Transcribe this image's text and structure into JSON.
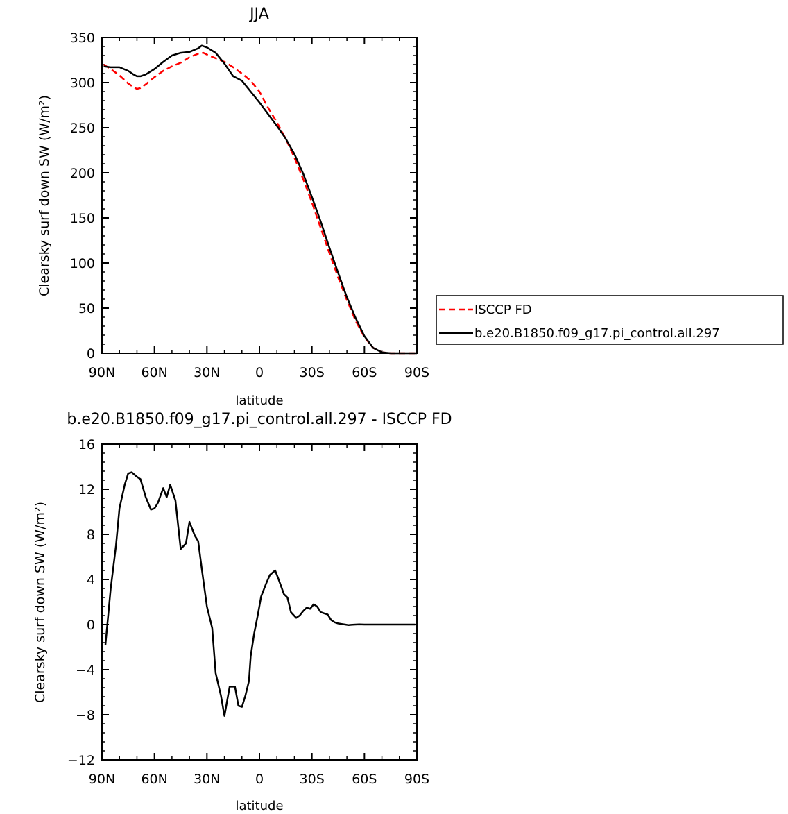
{
  "chart_data": [
    {
      "type": "line",
      "title": "JJA",
      "xlabel": "latitude",
      "ylabel": "Clearsky surf down SW (W/m²)",
      "xlim": [
        90,
        -90
      ],
      "ylim": [
        0,
        350
      ],
      "xticks": [
        {
          "value": 90,
          "label": "90N"
        },
        {
          "value": 60,
          "label": "60N"
        },
        {
          "value": 30,
          "label": "30N"
        },
        {
          "value": 0,
          "label": "0"
        },
        {
          "value": -30,
          "label": "30S"
        },
        {
          "value": -60,
          "label": "60S"
        },
        {
          "value": -90,
          "label": "90S"
        }
      ],
      "yticks": [
        0,
        50,
        100,
        150,
        200,
        250,
        300,
        350
      ],
      "legend_position": "right",
      "series": [
        {
          "name": "ISCCP FD",
          "color": "#ff0000",
          "dash": "dashed",
          "x": [
            89,
            85,
            80,
            75,
            72,
            70,
            68,
            65,
            60,
            55,
            50,
            45,
            40,
            35,
            32,
            30,
            25,
            20,
            15,
            10,
            5,
            0,
            -5,
            -10,
            -15,
            -20,
            -25,
            -30,
            -35,
            -40,
            -45,
            -50,
            -55,
            -60,
            -65,
            -70,
            -75,
            -80,
            -85,
            -90
          ],
          "y": [
            320,
            315,
            308,
            299,
            295,
            293,
            294,
            298,
            306,
            313,
            318,
            322,
            328,
            332,
            333,
            331,
            327,
            323,
            317,
            310,
            302,
            290,
            272,
            256,
            238,
            217,
            193,
            167,
            139,
            111,
            84,
            59,
            36,
            18,
            6,
            1,
            0,
            0,
            0,
            0
          ]
        },
        {
          "name": "b.e20.B1850.f09_g17.pi_control.all.297",
          "color": "#000000",
          "dash": "solid",
          "x": [
            89,
            85,
            80,
            75,
            72,
            70,
            68,
            65,
            60,
            55,
            50,
            45,
            40,
            35,
            33,
            30,
            25,
            20,
            15,
            10,
            5,
            0,
            -5,
            -10,
            -15,
            -20,
            -25,
            -30,
            -35,
            -40,
            -45,
            -50,
            -55,
            -60,
            -65,
            -70,
            -75,
            -80,
            -85,
            -90
          ],
          "y": [
            318,
            317,
            317,
            313,
            309,
            307,
            307,
            309,
            315,
            323,
            330,
            333,
            334,
            338,
            341,
            339,
            333,
            321,
            307,
            302,
            290,
            278,
            265,
            252,
            238,
            221,
            199,
            173,
            146,
            117,
            89,
            62,
            39,
            19,
            6,
            1,
            0,
            0,
            0,
            0
          ]
        }
      ]
    },
    {
      "type": "line",
      "title": "b.e20.B1850.f09_g17.pi_control.all.297 - ISCCP FD",
      "xlabel": "latitude",
      "ylabel": "Clearsky surf down SW (W/m²)",
      "xlim": [
        90,
        -90
      ],
      "ylim": [
        -12,
        16
      ],
      "xticks": [
        {
          "value": 90,
          "label": "90N"
        },
        {
          "value": 60,
          "label": "60N"
        },
        {
          "value": 30,
          "label": "30N"
        },
        {
          "value": 0,
          "label": "0"
        },
        {
          "value": -30,
          "label": "30S"
        },
        {
          "value": -60,
          "label": "60S"
        },
        {
          "value": -90,
          "label": "90S"
        }
      ],
      "yticks": [
        -12,
        -8,
        -4,
        0,
        4,
        8,
        12,
        16
      ],
      "series": [
        {
          "color": "#000000",
          "x": [
            88,
            85,
            82,
            80,
            77,
            75,
            73,
            70,
            68,
            65,
            62,
            60,
            58,
            55,
            53,
            51,
            48,
            45,
            42,
            40,
            37,
            35,
            33,
            30,
            27,
            25,
            22,
            20,
            17,
            14,
            12,
            10,
            8,
            6,
            5,
            3,
            1,
            -1,
            -4,
            -6,
            -9,
            -11,
            -14,
            -16,
            -18,
            -21,
            -23,
            -25,
            -27,
            -29,
            -31,
            -33,
            -35,
            -37,
            -39,
            -41,
            -43,
            -45,
            -47,
            -49,
            -51,
            -53,
            -55,
            -57,
            -60,
            -62,
            -65,
            -67,
            -70,
            -73,
            -75,
            -78,
            -80,
            -83,
            -85,
            -88,
            -89
          ],
          "y": [
            -1.8,
            3.2,
            7.0,
            10.3,
            12.4,
            13.4,
            13.5,
            13.1,
            12.9,
            11.3,
            10.2,
            10.3,
            10.8,
            12.1,
            11.3,
            12.4,
            11.0,
            6.7,
            7.2,
            9.1,
            7.9,
            7.4,
            5.0,
            1.6,
            -0.3,
            -4.3,
            -6.3,
            -8.1,
            -5.5,
            -5.5,
            -7.2,
            -7.3,
            -6.3,
            -5.0,
            -2.8,
            -0.8,
            0.8,
            2.5,
            3.7,
            4.4,
            4.8,
            4.0,
            2.7,
            2.4,
            1.1,
            0.6,
            0.8,
            1.2,
            1.5,
            1.4,
            1.8,
            1.6,
            1.1,
            1.0,
            0.9,
            0.4,
            0.2,
            0.1,
            0.05,
            0.0,
            -0.05,
            -0.02,
            0.0,
            0.02,
            0.0,
            0.0,
            0.0,
            0.0,
            0.0,
            0.0,
            0.0,
            0.0,
            0.0,
            0.0,
            0.0,
            0.0,
            0.0
          ]
        }
      ]
    }
  ]
}
